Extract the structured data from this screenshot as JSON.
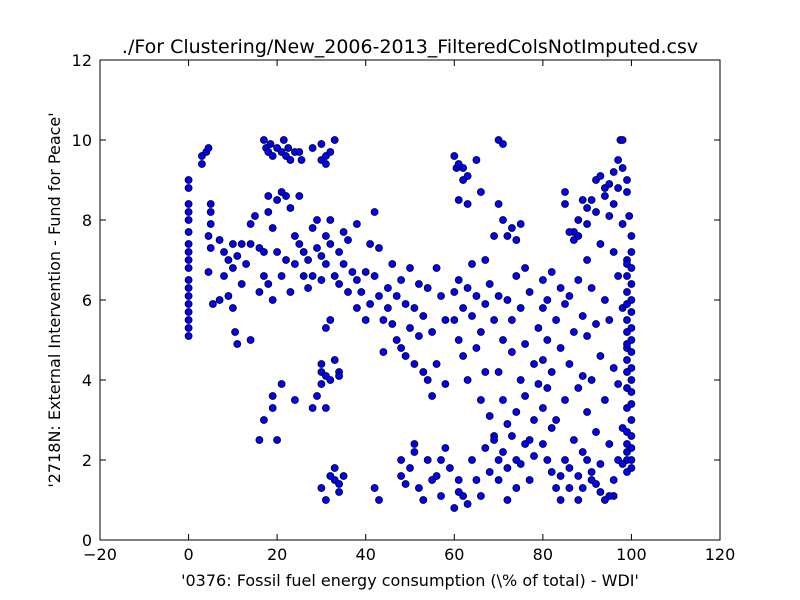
{
  "chart_data": {
    "type": "scatter",
    "title": "./For Clustering/New_2006-2013_FilteredColsNotImputed.csv",
    "xlabel": "'0376: Fossil fuel energy consumption  (\\% of total) - WDI'",
    "ylabel": "'2718N: External Intervention - Fund for Peace'",
    "xlim": [
      -20,
      120
    ],
    "ylim": [
      0,
      12
    ],
    "xticks": [
      -20,
      0,
      20,
      40,
      60,
      80,
      100,
      120
    ],
    "yticks": [
      0,
      2,
      4,
      6,
      8,
      10,
      12
    ],
    "xtick_labels": [
      "−20",
      "0",
      "20",
      "40",
      "60",
      "80",
      "100",
      "120"
    ],
    "ytick_labels": [
      "0",
      "2",
      "4",
      "6",
      "8",
      "10",
      "12"
    ],
    "grid": false,
    "marker_color": "#0000ff",
    "marker_edge_color": "#000000",
    "points": [
      [
        0,
        9.0
      ],
      [
        0,
        8.8
      ],
      [
        0,
        8.4
      ],
      [
        0,
        8.2
      ],
      [
        0,
        8.0
      ],
      [
        0,
        7.7
      ],
      [
        0,
        7.4
      ],
      [
        0,
        7.2
      ],
      [
        0,
        7.0
      ],
      [
        0,
        6.8
      ],
      [
        0,
        6.5
      ],
      [
        0,
        6.3
      ],
      [
        0,
        6.1
      ],
      [
        0,
        5.9
      ],
      [
        0,
        5.7
      ],
      [
        0,
        5.5
      ],
      [
        0,
        5.3
      ],
      [
        0,
        5.1
      ],
      [
        3,
        9.4
      ],
      [
        3,
        9.6
      ],
      [
        4,
        9.7
      ],
      [
        4.5,
        9.8
      ],
      [
        5,
        8.4
      ],
      [
        5,
        8.2
      ],
      [
        5,
        7.9
      ],
      [
        4.5,
        7.6
      ],
      [
        5,
        7.3
      ],
      [
        4.5,
        6.7
      ],
      [
        5.5,
        5.9
      ],
      [
        7,
        7.5
      ],
      [
        7,
        6.0
      ],
      [
        8,
        7.2
      ],
      [
        8,
        6.6
      ],
      [
        9,
        7.0
      ],
      [
        9,
        6.1
      ],
      [
        10,
        7.4
      ],
      [
        10,
        6.8
      ],
      [
        10,
        5.8
      ],
      [
        10.5,
        5.2
      ],
      [
        11,
        4.9
      ],
      [
        11,
        7.1
      ],
      [
        12,
        6.4
      ],
      [
        12,
        7.4
      ],
      [
        13,
        6.9
      ],
      [
        14,
        5.0
      ],
      [
        14,
        7.9
      ],
      [
        14,
        7.4
      ],
      [
        15,
        8.1
      ],
      [
        16,
        7.3
      ],
      [
        16,
        6.2
      ],
      [
        17,
        6.6
      ],
      [
        17,
        7.2
      ],
      [
        18,
        8.2
      ],
      [
        18,
        8.6
      ],
      [
        18,
        6.4
      ],
      [
        19,
        7.8
      ],
      [
        19,
        6.0
      ],
      [
        20,
        8.5
      ],
      [
        20,
        7.2
      ],
      [
        21,
        6.6
      ],
      [
        21,
        8.7
      ],
      [
        22,
        8.6
      ],
      [
        22,
        7.0
      ],
      [
        23,
        8.3
      ],
      [
        23,
        6.2
      ],
      [
        24,
        7.6
      ],
      [
        24,
        6.9
      ],
      [
        25,
        8.6
      ],
      [
        25,
        7.4
      ],
      [
        26,
        6.6
      ],
      [
        26,
        7.2
      ],
      [
        27,
        6.3
      ],
      [
        27,
        7.0
      ],
      [
        28,
        7.8
      ],
      [
        28,
        6.6
      ],
      [
        29,
        7.3
      ],
      [
        29,
        8.0
      ],
      [
        30,
        7.1
      ],
      [
        30,
        6.5
      ],
      [
        31,
        7.6
      ],
      [
        31,
        6.9
      ],
      [
        32,
        7.4
      ],
      [
        32,
        8.0
      ],
      [
        33,
        6.6
      ],
      [
        34,
        7.2
      ],
      [
        34,
        6.4
      ],
      [
        35,
        7.7
      ],
      [
        35,
        6.9
      ],
      [
        36,
        6.2
      ],
      [
        36,
        7.5
      ],
      [
        37,
        6.7
      ],
      [
        38,
        6.5
      ],
      [
        38,
        7.9
      ],
      [
        17,
        10.0
      ],
      [
        17.5,
        9.8
      ],
      [
        18,
        9.7
      ],
      [
        18.5,
        9.9
      ],
      [
        19,
        9.6
      ],
      [
        20,
        9.8
      ],
      [
        21,
        9.7
      ],
      [
        21.5,
        10.0
      ],
      [
        22,
        9.6
      ],
      [
        22.5,
        9.8
      ],
      [
        23,
        9.5
      ],
      [
        24,
        9.7
      ],
      [
        25,
        9.7
      ],
      [
        25.5,
        9.5
      ],
      [
        28,
        9.8
      ],
      [
        30,
        9.9
      ],
      [
        30,
        9.5
      ],
      [
        31,
        9.6
      ],
      [
        32,
        9.7
      ],
      [
        33,
        10.0
      ],
      [
        31,
        9.4
      ],
      [
        16,
        2.5
      ],
      [
        17,
        3.0
      ],
      [
        19,
        3.6
      ],
      [
        19,
        3.3
      ],
      [
        20,
        2.5
      ],
      [
        21,
        3.9
      ],
      [
        24,
        3.5
      ],
      [
        28,
        3.3
      ],
      [
        29,
        3.6
      ],
      [
        30,
        4.2
      ],
      [
        30,
        4.4
      ],
      [
        30,
        3.9
      ],
      [
        31,
        4.1
      ],
      [
        31,
        3.3
      ],
      [
        32,
        5.5
      ],
      [
        32,
        4.0
      ],
      [
        33,
        4.5
      ],
      [
        34,
        4.2
      ],
      [
        34,
        4.1
      ],
      [
        31,
        5.3
      ],
      [
        30,
        1.3
      ],
      [
        31,
        1.0
      ],
      [
        32,
        1.6
      ],
      [
        33,
        1.5
      ],
      [
        33,
        1.8
      ],
      [
        34,
        1.4
      ],
      [
        35,
        1.6
      ],
      [
        34,
        1.2
      ],
      [
        38,
        5.8
      ],
      [
        39,
        6.2
      ],
      [
        40,
        5.5
      ],
      [
        40,
        6.7
      ],
      [
        41,
        7.4
      ],
      [
        41,
        5.9
      ],
      [
        42,
        6.6
      ],
      [
        42,
        8.2
      ],
      [
        43,
        6.1
      ],
      [
        43,
        7.3
      ],
      [
        44,
        5.5
      ],
      [
        44,
        4.7
      ],
      [
        45,
        6.3
      ],
      [
        45,
        5.8
      ],
      [
        46,
        6.9
      ],
      [
        46,
        5.4
      ],
      [
        47,
        6.1
      ],
      [
        47,
        5.0
      ],
      [
        48,
        4.8
      ],
      [
        48,
        6.5
      ],
      [
        49,
        5.9
      ],
      [
        49,
        4.6
      ],
      [
        50,
        5.3
      ],
      [
        50,
        6.8
      ],
      [
        51,
        5.8
      ],
      [
        51,
        4.4
      ],
      [
        52,
        6.4
      ],
      [
        52,
        5.1
      ],
      [
        53,
        5.6
      ],
      [
        53,
        4.2
      ],
      [
        54,
        4.0
      ],
      [
        54,
        6.3
      ],
      [
        55,
        5.2
      ],
      [
        55,
        3.6
      ],
      [
        56,
        4.4
      ],
      [
        56,
        6.8
      ],
      [
        57,
        6.1
      ],
      [
        58,
        3.9
      ],
      [
        58,
        5.5
      ],
      [
        42,
        1.3
      ],
      [
        43,
        1.0
      ],
      [
        48,
        2.0
      ],
      [
        48,
        1.6
      ],
      [
        49,
        1.4
      ],
      [
        50,
        1.8
      ],
      [
        51,
        2.2
      ],
      [
        51,
        2.4
      ],
      [
        52,
        1.3
      ],
      [
        53,
        1.0
      ],
      [
        54,
        2.0
      ],
      [
        55,
        1.5
      ],
      [
        56,
        1.6
      ],
      [
        57,
        2.0
      ],
      [
        57,
        1.1
      ],
      [
        58,
        2.3
      ],
      [
        59,
        1.8
      ],
      [
        60,
        0.8
      ],
      [
        61,
        1.5
      ],
      [
        62,
        1.1
      ],
      [
        63,
        0.9
      ],
      [
        61,
        1.2
      ],
      [
        60,
        9.6
      ],
      [
        60.5,
        9.3
      ],
      [
        61,
        9.4
      ],
      [
        62,
        9.3
      ],
      [
        62,
        9.0
      ],
      [
        63,
        9.1
      ],
      [
        65,
        9.5
      ],
      [
        61,
        8.5
      ],
      [
        63,
        8.4
      ],
      [
        60,
        6.2
      ],
      [
        60,
        5.5
      ],
      [
        61,
        6.5
      ],
      [
        61,
        5.0
      ],
      [
        62,
        4.6
      ],
      [
        62,
        5.8
      ],
      [
        63,
        6.3
      ],
      [
        63,
        4.0
      ],
      [
        64,
        5.6
      ],
      [
        64,
        6.9
      ],
      [
        65,
        4.8
      ],
      [
        65,
        6.1
      ],
      [
        66,
        5.2
      ],
      [
        66,
        3.5
      ],
      [
        67,
        5.9
      ],
      [
        67,
        4.2
      ],
      [
        68,
        6.4
      ],
      [
        68,
        3.1
      ],
      [
        69,
        5.5
      ],
      [
        69,
        2.6
      ],
      [
        70,
        6.1
      ],
      [
        70,
        4.2
      ],
      [
        71,
        5.0
      ],
      [
        71,
        3.5
      ],
      [
        72,
        6.0
      ],
      [
        72,
        2.9
      ],
      [
        73,
        5.5
      ],
      [
        73,
        4.7
      ],
      [
        74,
        3.2
      ],
      [
        74,
        6.6
      ],
      [
        75,
        4.0
      ],
      [
        75,
        5.8
      ],
      [
        76,
        3.6
      ],
      [
        76,
        4.9
      ],
      [
        77,
        2.5
      ],
      [
        77,
        6.2
      ],
      [
        78,
        4.4
      ],
      [
        78,
        3.0
      ],
      [
        79,
        5.3
      ],
      [
        79,
        3.9
      ],
      [
        70,
        10.0
      ],
      [
        71,
        9.9
      ],
      [
        69,
        7.6
      ],
      [
        70,
        8.4
      ],
      [
        71,
        8.0
      ],
      [
        72,
        7.6
      ],
      [
        73,
        7.8
      ],
      [
        74,
        7.5
      ],
      [
        75,
        7.9
      ],
      [
        76,
        6.8
      ],
      [
        66,
        8.7
      ],
      [
        67,
        7.0
      ],
      [
        64,
        2.0
      ],
      [
        65,
        1.5
      ],
      [
        66,
        1.1
      ],
      [
        67,
        2.3
      ],
      [
        68,
        1.7
      ],
      [
        69,
        2.5
      ],
      [
        70,
        2.0
      ],
      [
        70,
        1.5
      ],
      [
        71,
        2.2
      ],
      [
        72,
        1.8
      ],
      [
        72,
        1.0
      ],
      [
        73,
        2.6
      ],
      [
        74,
        1.3
      ],
      [
        74,
        2.0
      ],
      [
        75,
        1.9
      ],
      [
        76,
        2.4
      ],
      [
        77,
        1.5
      ],
      [
        78,
        2.1
      ],
      [
        80,
        6.5
      ],
      [
        80,
        5.8
      ],
      [
        80,
        4.5
      ],
      [
        80,
        3.3
      ],
      [
        80,
        2.4
      ],
      [
        81,
        6.0
      ],
      [
        81,
        5.0
      ],
      [
        81,
        3.8
      ],
      [
        82,
        6.7
      ],
      [
        82,
        4.2
      ],
      [
        82,
        2.8
      ],
      [
        83,
        5.5
      ],
      [
        83,
        3.0
      ],
      [
        84,
        6.3
      ],
      [
        84,
        4.8
      ],
      [
        84,
        1.6
      ],
      [
        85,
        5.9
      ],
      [
        85,
        3.5
      ],
      [
        85,
        2.0
      ],
      [
        86,
        6.1
      ],
      [
        86,
        4.4
      ],
      [
        86,
        1.3
      ],
      [
        87,
        7.7
      ],
      [
        87,
        5.2
      ],
      [
        87,
        2.5
      ],
      [
        88,
        6.5
      ],
      [
        88,
        3.8
      ],
      [
        88,
        1.0
      ],
      [
        89,
        5.6
      ],
      [
        89,
        4.1
      ],
      [
        89,
        2.2
      ],
      [
        90,
        7.0
      ],
      [
        90,
        5.1
      ],
      [
        90,
        3.2
      ],
      [
        91,
        6.3
      ],
      [
        91,
        4.0
      ],
      [
        91,
        1.5
      ],
      [
        92,
        5.4
      ],
      [
        92,
        2.7
      ],
      [
        93,
        7.4
      ],
      [
        93,
        4.6
      ],
      [
        93,
        1.9
      ],
      [
        94,
        6.0
      ],
      [
        94,
        3.5
      ],
      [
        95,
        8.1
      ],
      [
        95,
        5.5
      ],
      [
        95,
        2.4
      ],
      [
        96,
        7.2
      ],
      [
        96,
        4.3
      ],
      [
        96,
        1.1
      ],
      [
        97,
        8.8
      ],
      [
        97,
        6.6
      ],
      [
        97,
        3.9
      ],
      [
        98,
        7.9
      ],
      [
        98,
        5.8
      ],
      [
        98,
        2.8
      ],
      [
        99,
        7.0
      ],
      [
        99,
        4.8
      ],
      [
        99,
        1.7
      ],
      [
        85,
        8.7
      ],
      [
        85,
        8.4
      ],
      [
        86,
        7.7
      ],
      [
        87,
        7.5
      ],
      [
        88,
        7.6
      ],
      [
        88,
        8.0
      ],
      [
        89,
        8.5
      ],
      [
        90,
        8.3
      ],
      [
        90,
        7.9
      ],
      [
        91,
        8.5
      ],
      [
        92,
        9.0
      ],
      [
        92,
        8.2
      ],
      [
        93,
        9.1
      ],
      [
        94,
        8.6
      ],
      [
        94,
        8.8
      ],
      [
        95,
        8.9
      ],
      [
        96,
        9.2
      ],
      [
        96,
        8.4
      ],
      [
        97,
        9.5
      ],
      [
        97.5,
        10.0
      ],
      [
        98,
        10.0
      ],
      [
        98,
        9.3
      ],
      [
        99,
        9.0
      ],
      [
        99,
        8.7
      ],
      [
        99.5,
        8.1
      ],
      [
        99,
        6.9
      ],
      [
        99,
        6.6
      ],
      [
        99,
        6.2
      ],
      [
        99,
        5.9
      ],
      [
        99,
        5.5
      ],
      [
        99,
        5.2
      ],
      [
        99,
        4.9
      ],
      [
        99,
        4.5
      ],
      [
        99,
        4.2
      ],
      [
        99,
        3.8
      ],
      [
        99,
        3.3
      ],
      [
        99,
        2.7
      ],
      [
        99,
        2.2
      ],
      [
        99,
        2.0
      ],
      [
        100,
        7.6
      ],
      [
        100,
        7.2
      ],
      [
        100,
        6.8
      ],
      [
        100,
        6.4
      ],
      [
        100,
        6.0
      ],
      [
        100,
        5.7
      ],
      [
        100,
        5.3
      ],
      [
        100,
        5.0
      ],
      [
        100,
        4.7
      ],
      [
        100,
        4.3
      ],
      [
        100,
        4.0
      ],
      [
        100,
        3.7
      ],
      [
        100,
        3.4
      ],
      [
        100,
        3.0
      ],
      [
        100,
        2.6
      ],
      [
        100,
        2.3
      ],
      [
        100,
        2.0
      ],
      [
        100,
        1.8
      ],
      [
        81,
        2.0
      ],
      [
        82,
        1.7
      ],
      [
        83,
        1.3
      ],
      [
        84,
        1.0
      ],
      [
        86,
        1.8
      ],
      [
        88,
        1.6
      ],
      [
        89,
        1.3
      ],
      [
        90,
        2.0
      ],
      [
        91,
        1.7
      ],
      [
        92,
        1.4
      ],
      [
        93,
        1.2
      ],
      [
        94,
        1.0
      ],
      [
        95,
        1.1
      ],
      [
        96,
        1.5
      ],
      [
        97,
        2.0
      ],
      [
        98,
        1.9
      ],
      [
        99,
        2.4
      ]
    ]
  }
}
